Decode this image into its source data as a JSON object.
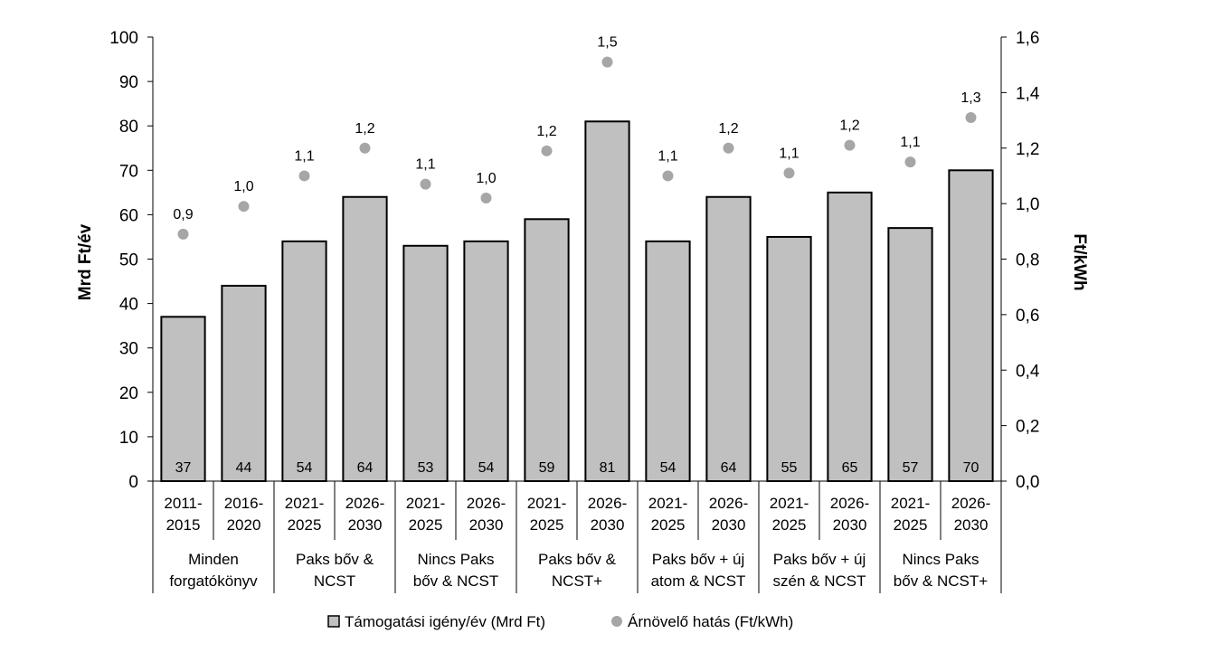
{
  "chart_data": {
    "type": "bar",
    "title": "",
    "y_left": {
      "label": "Mrd Ft/év",
      "min": 0,
      "max": 100,
      "step": 10,
      "ticks": [
        "0",
        "10",
        "20",
        "30",
        "40",
        "50",
        "60",
        "70",
        "80",
        "90",
        "100"
      ]
    },
    "y_right": {
      "label": "Ft/kWh",
      "min": 0,
      "max": 1.6,
      "step": 0.2,
      "ticks": [
        "0,0",
        "0,2",
        "0,4",
        "0,6",
        "0,8",
        "1,0",
        "1,2",
        "1,4",
        "1,6"
      ]
    },
    "periods": [
      "2011-\n2015",
      "2016-\n2020",
      "2021-\n2025",
      "2026-\n2030",
      "2021-\n2025",
      "2026-\n2030",
      "2021-\n2025",
      "2026-\n2030",
      "2021-\n2025",
      "2026-\n2030",
      "2021-\n2025",
      "2026-\n2030",
      "2021-\n2025",
      "2026-\n2030"
    ],
    "groups": [
      {
        "label": "Minden\nforgatókönyv",
        "span": 2
      },
      {
        "label": "Paks bőv &\nNCST",
        "span": 2
      },
      {
        "label": "Nincs Paks\nbőv & NCST",
        "span": 2
      },
      {
        "label": "Paks bőv &\nNCST+",
        "span": 2
      },
      {
        "label": "Paks bőv + új\natom & NCST",
        "span": 2
      },
      {
        "label": "Paks bőv + új\nszén & NCST",
        "span": 2
      },
      {
        "label": "Nincs Paks\nbőv & NCST+",
        "span": 2
      }
    ],
    "series": [
      {
        "name": "Támogatási igény/év (Mrd Ft)",
        "kind": "bar",
        "axis": "left",
        "color": "#c0c0c0",
        "values": [
          37,
          44,
          54,
          64,
          53,
          54,
          59,
          81,
          54,
          64,
          55,
          65,
          57,
          70
        ],
        "labels": [
          "37",
          "44",
          "54",
          "64",
          "53",
          "54",
          "59",
          "81",
          "54",
          "64",
          "55",
          "65",
          "57",
          "70"
        ]
      },
      {
        "name": "Árnövelő hatás (Ft/kWh)",
        "kind": "scatter",
        "axis": "right",
        "color": "#a6a6a6",
        "values": [
          0.89,
          0.99,
          1.1,
          1.2,
          1.07,
          1.02,
          1.19,
          1.51,
          1.1,
          1.2,
          1.11,
          1.21,
          1.15,
          1.31
        ],
        "labels": [
          "0,9",
          "1,0",
          "1,1",
          "1,2",
          "1,1",
          "1,0",
          "1,2",
          "1,5",
          "1,1",
          "1,2",
          "1,1",
          "1,2",
          "1,1",
          "1,3"
        ]
      }
    ],
    "legend_position": "bottom",
    "grid": false
  }
}
